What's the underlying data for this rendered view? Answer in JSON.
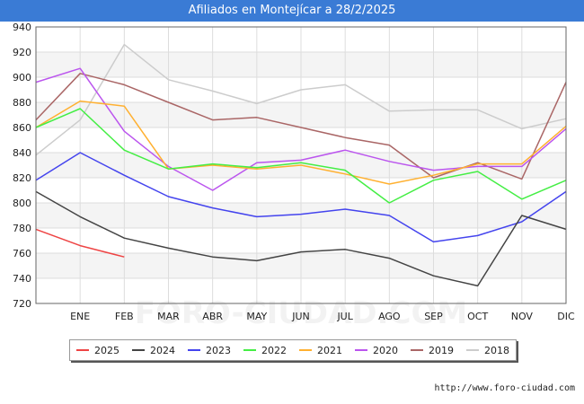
{
  "page": {
    "title": "Afiliados en Montejícar a 28/2/2025",
    "source": "http://www.foro-ciudad.com",
    "watermark": "FORO-CIUDAD.COM"
  },
  "chart_data": {
    "type": "line",
    "title": "Afiliados en Montejícar a 28/2/2025",
    "xlabel": "",
    "ylabel": "",
    "categories": [
      "",
      "ENE",
      "FEB",
      "MAR",
      "ABR",
      "MAY",
      "JUN",
      "JUL",
      "AGO",
      "SEP",
      "OCT",
      "NOV",
      "DIC"
    ],
    "ylim": [
      720,
      940
    ],
    "yticks": [
      720,
      740,
      760,
      780,
      800,
      820,
      840,
      860,
      880,
      900,
      920,
      940
    ],
    "grid": true,
    "legend_position": "bottom",
    "series": [
      {
        "name": "2025",
        "color": "#ee4444",
        "values": [
          779,
          766,
          757,
          null,
          null,
          null,
          null,
          null,
          null,
          null,
          null,
          null,
          null
        ]
      },
      {
        "name": "2024",
        "color": "#444444",
        "values": [
          809,
          789,
          772,
          764,
          757,
          754,
          761,
          763,
          756,
          742,
          734,
          790,
          779
        ]
      },
      {
        "name": "2023",
        "color": "#4444ee",
        "values": [
          818,
          840,
          822,
          805,
          796,
          789,
          791,
          795,
          790,
          769,
          774,
          785,
          809
        ]
      },
      {
        "name": "2022",
        "color": "#44ee44",
        "values": [
          860,
          875,
          842,
          827,
          831,
          828,
          832,
          826,
          800,
          818,
          825,
          803,
          818
        ]
      },
      {
        "name": "2021",
        "color": "#ffb030",
        "values": [
          860,
          881,
          877,
          827,
          830,
          827,
          830,
          823,
          815,
          822,
          831,
          831,
          861
        ]
      },
      {
        "name": "2020",
        "color": "#bb55ee",
        "values": [
          896,
          907,
          857,
          829,
          810,
          832,
          834,
          842,
          833,
          826,
          829,
          829,
          859
        ]
      },
      {
        "name": "2019",
        "color": "#aa6666",
        "values": [
          866,
          903,
          894,
          880,
          866,
          868,
          860,
          852,
          846,
          820,
          832,
          819,
          896
        ]
      },
      {
        "name": "2018",
        "color": "#cccccc",
        "values": [
          838,
          866,
          926,
          898,
          889,
          879,
          890,
          894,
          873,
          874,
          874,
          859,
          867
        ]
      }
    ]
  }
}
